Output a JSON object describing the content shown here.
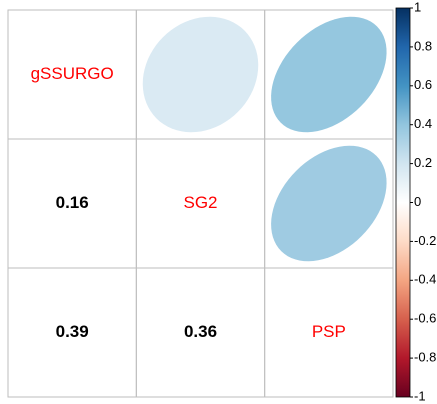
{
  "chart_data": {
    "type": "corrplot",
    "variables": [
      "gSSURGO",
      "SG2",
      "PSP"
    ],
    "values": [
      0.16,
      0.39,
      0.36
    ],
    "names_color": "#ff0000",
    "colorscale": [
      "#67001F",
      "#B2182B",
      "#D6604D",
      "#F4A582",
      "#FDDBC7",
      "#FFFFFF",
      "#D1E5F0",
      "#92C5DE",
      "#4393C3",
      "#2166AC",
      "#053061"
    ],
    "ylim": [
      -1,
      1
    ],
    "yticks": [
      -1,
      -0.8,
      -0.6,
      -0.4,
      -0.2,
      0,
      0.2,
      0.4,
      0.6,
      0.8,
      1
    ]
  }
}
